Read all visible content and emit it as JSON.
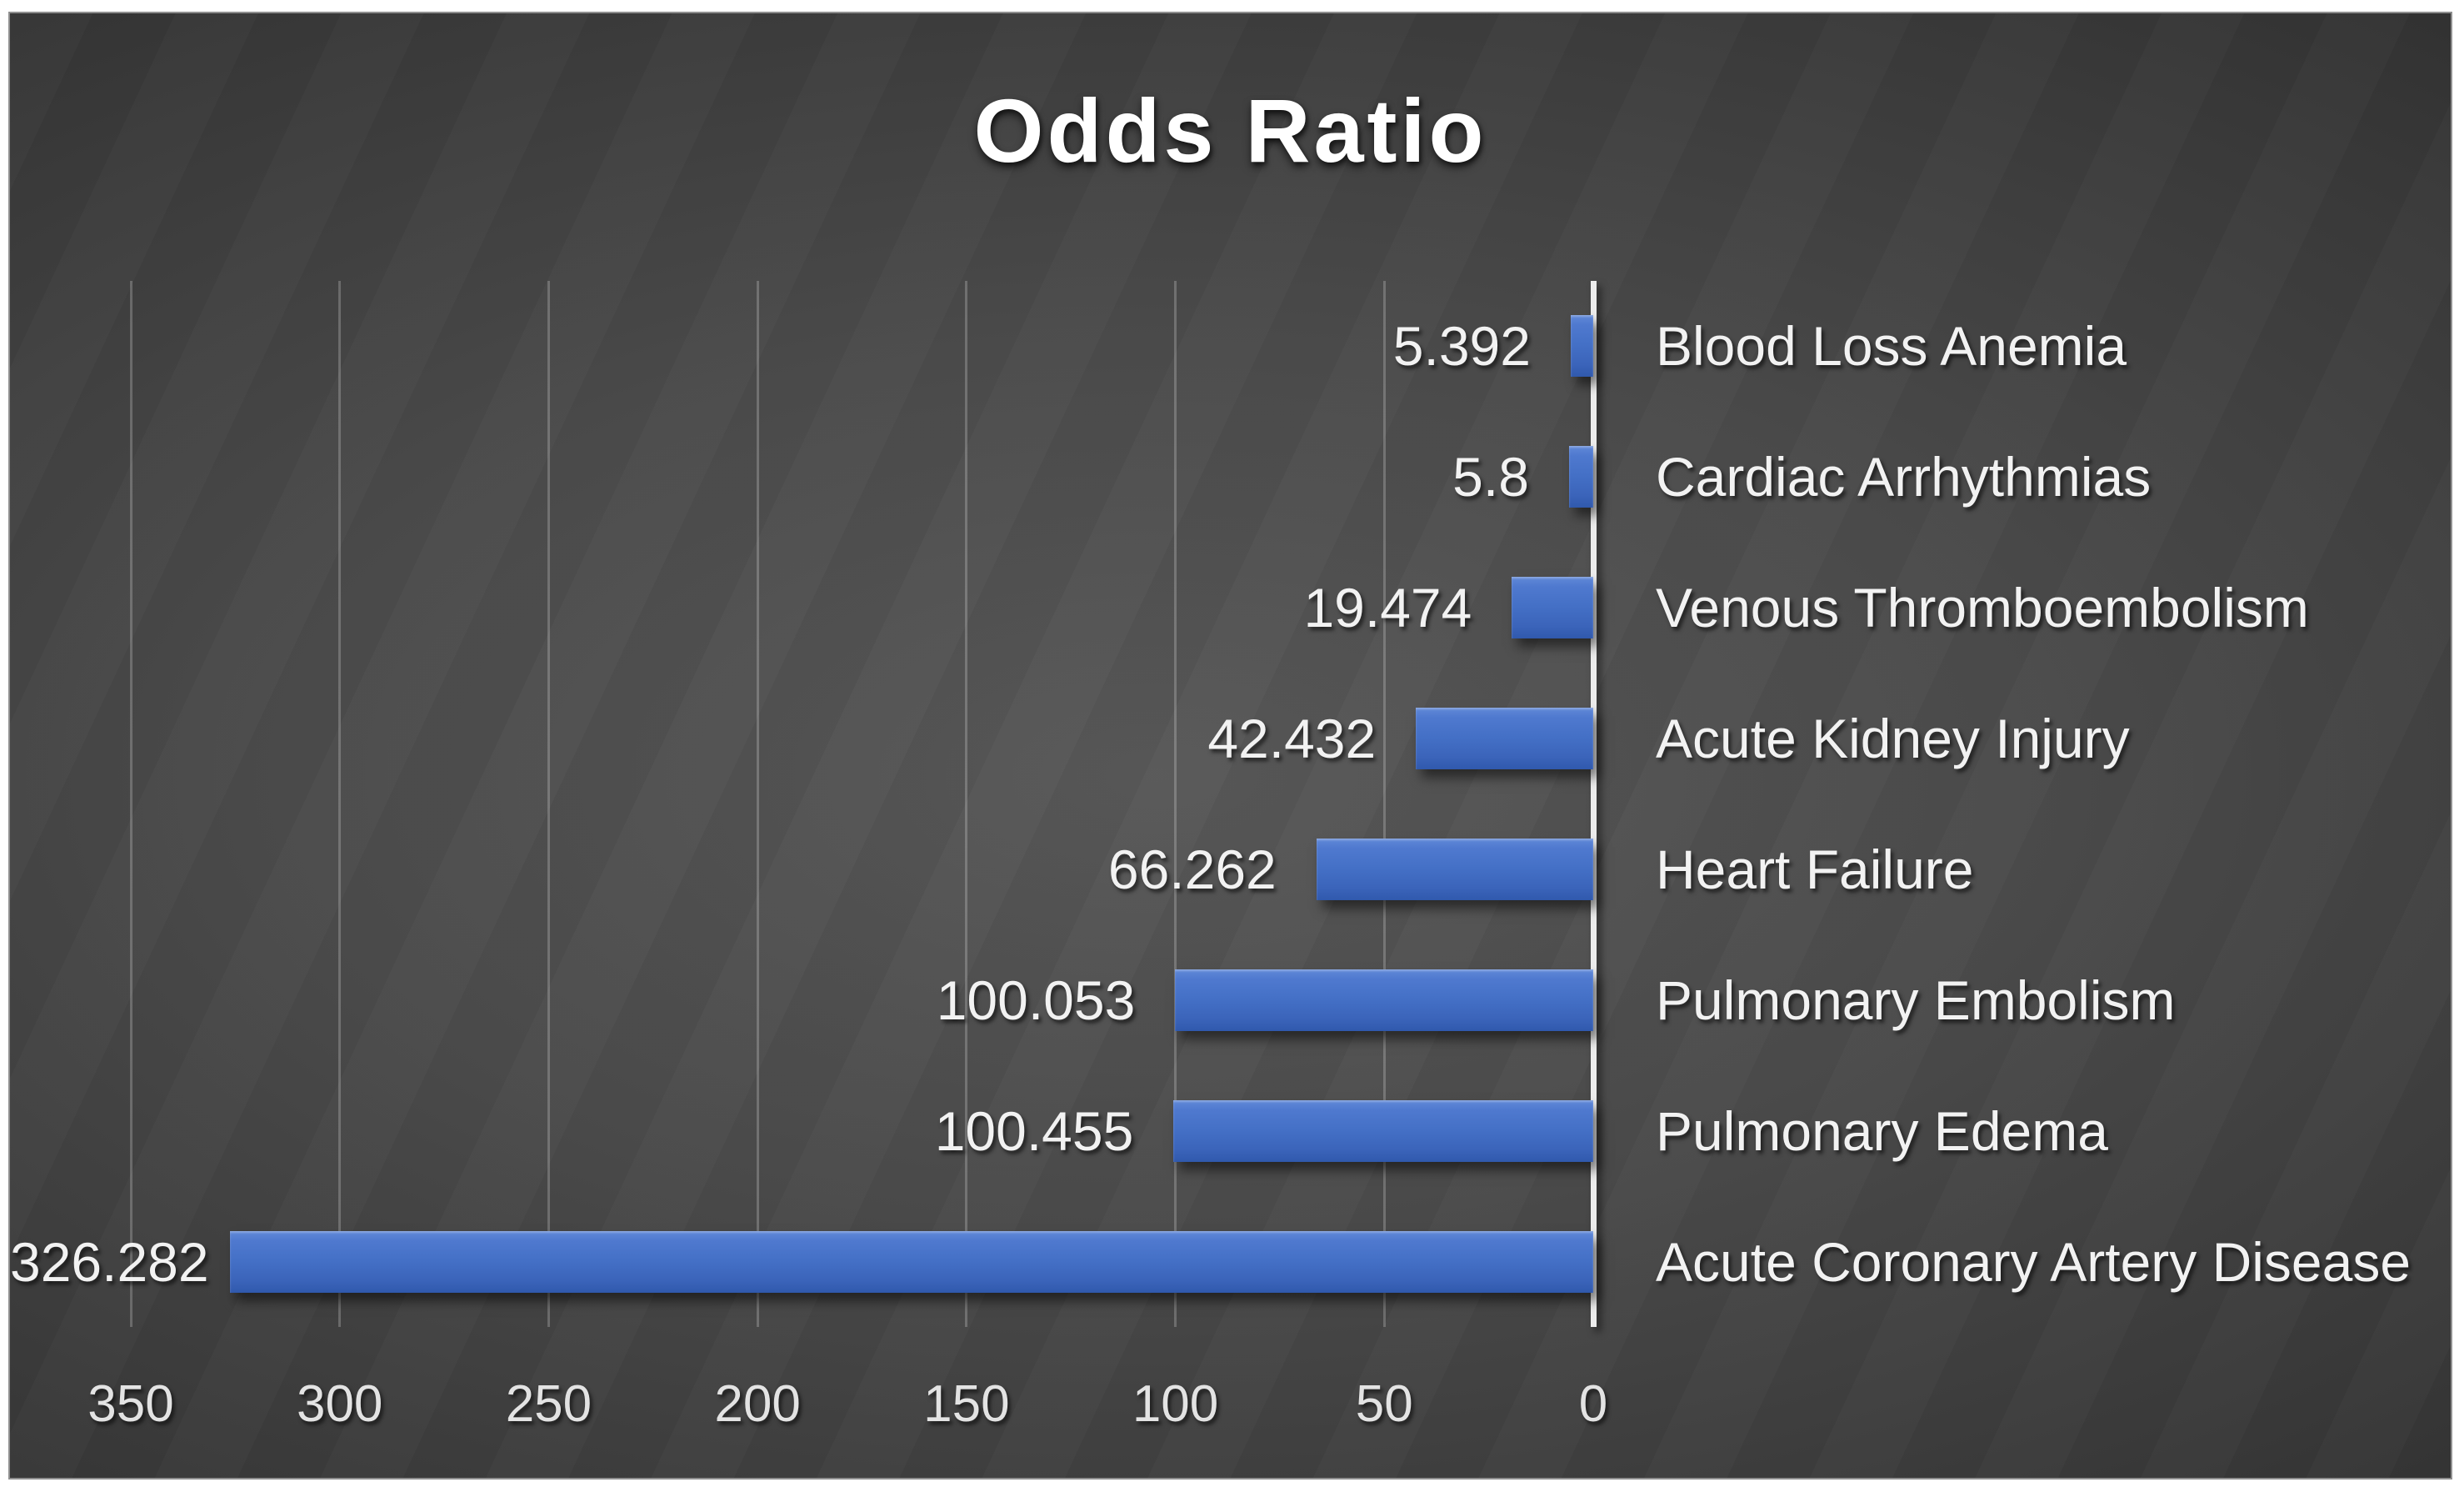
{
  "chart_data": {
    "type": "bar",
    "orientation": "horizontal",
    "title": "Odds Ratio",
    "categories": [
      "Blood Loss Anemia",
      "Cardiac Arrhythmias",
      "Venous Thromboembolism",
      "Acute Kidney Injury",
      "Heart Failure",
      "Pulmonary Embolism",
      "Pulmonary Edema",
      "Acute Coronary Artery Disease"
    ],
    "values": [
      5.392,
      5.8,
      19.474,
      42.432,
      66.262,
      100.053,
      100.455,
      326.282
    ],
    "value_labels": [
      "5.392",
      "5.8",
      "19.474",
      "42.432",
      "66.262",
      "100.053",
      "100.455",
      "326.282"
    ],
    "x_ticks": [
      "350",
      "300",
      "250",
      "200",
      "150",
      "100",
      "50",
      "0"
    ],
    "x_tick_values": [
      350,
      300,
      250,
      200,
      150,
      100,
      50,
      0
    ],
    "xlim": [
      0,
      350
    ],
    "x_axis_reversed": true,
    "gridlines": true,
    "legend": "none",
    "data_label_position": "outside-end-left",
    "colors": {
      "bar": "#4472c4",
      "bar_gradient_top": "#6189d8",
      "bar_gradient_bottom": "#3059ad",
      "axis_line": "#ececec",
      "gridline": "rgba(255,255,255,0.22)",
      "label_text": "#f2f2f2",
      "title_text": "#ffffff",
      "background_center": "#585858",
      "background_edge": "#242424",
      "page_background": "#ffffff"
    }
  }
}
